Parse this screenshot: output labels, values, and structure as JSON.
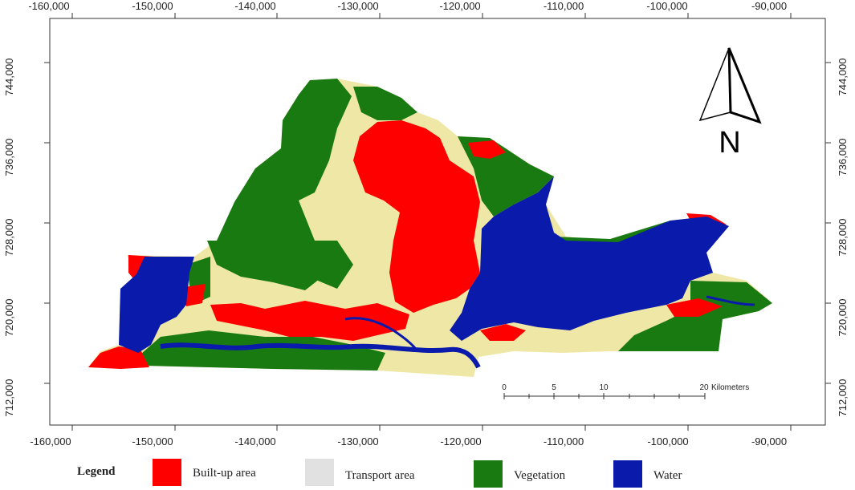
{
  "map": {
    "x_ticks": [
      "-160,000",
      "-150,000",
      "-140,000",
      "-130,000",
      "-120,000",
      "-110,000",
      "-100,000",
      "-90,000"
    ],
    "y_ticks": [
      "744,000",
      "736,000",
      "728,000",
      "720,000",
      "712,000"
    ],
    "north_arrow": {
      "label": "N",
      "icon": "north-arrow-icon"
    },
    "scale_bar": {
      "ticks": [
        "0",
        "5",
        "10",
        "20"
      ],
      "unit": "Kilometers"
    }
  },
  "legend": {
    "title": "Legend",
    "items": [
      {
        "label": "Built-up area",
        "color": "#ff0000"
      },
      {
        "label": "Transport area",
        "color": "#e1e1e1"
      },
      {
        "label": "Vegetation",
        "color": "#1a7a12"
      },
      {
        "label": "Water",
        "color": "#0a1aaa"
      }
    ]
  },
  "colors": {
    "built_up": "#ff0000",
    "transport": "#e1e1e1",
    "vegetation": "#1a7a12",
    "water": "#0a1aaa",
    "bare_mix": "#efe7a6"
  }
}
